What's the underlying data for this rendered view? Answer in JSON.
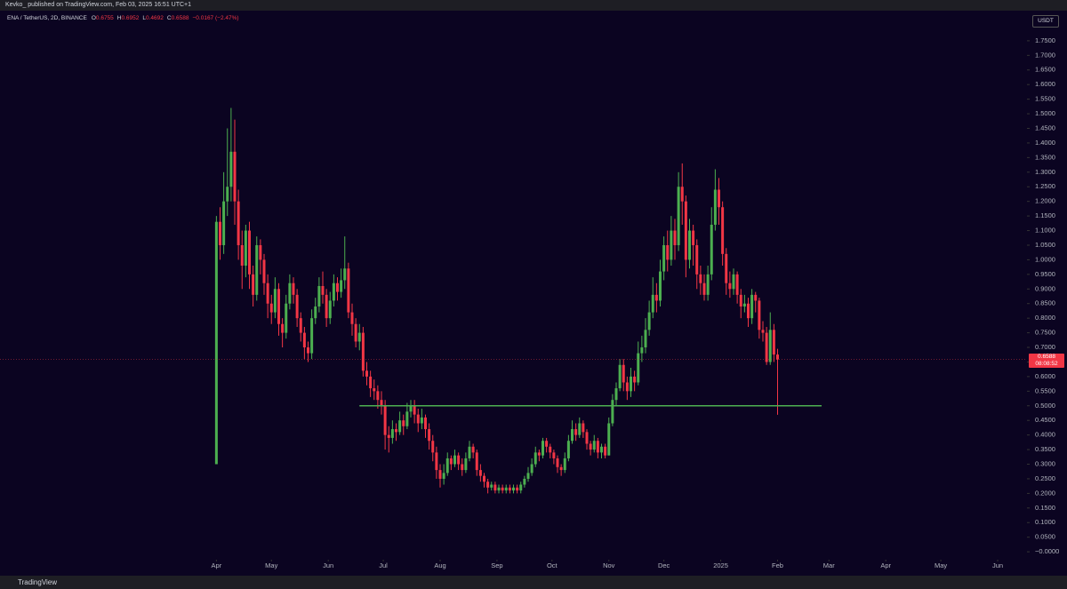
{
  "header": "Kevko_ published on TradingView.com, Feb 03, 2025 16:51 UTC+1",
  "footer": "TradingView",
  "chart_data": {
    "type": "candlestick",
    "symbol": "ENA / TetherUS, 2D, BINANCE",
    "currency": "USDT",
    "legend_labels": [
      "O",
      "H",
      "L",
      "C"
    ],
    "change_label": "−0.0167 (−2.47%)",
    "countdown": "08:08:52",
    "up_color": "#4caf50",
    "down_color": "#f23645",
    "grid": false,
    "open": [
      0.3,
      1.13,
      1.05,
      1.2,
      1.25,
      1.37,
      1.2,
      1.05,
      0.98,
      1.1,
      0.95,
      0.88,
      1.05,
      1.0,
      0.92,
      0.85,
      0.82,
      0.9,
      0.78,
      0.75,
      0.85,
      0.92,
      0.88,
      0.8,
      0.75,
      0.7,
      0.68,
      0.8,
      0.84,
      0.91,
      0.88,
      0.8,
      0.86,
      0.92,
      0.89,
      0.93,
      0.97,
      0.82,
      0.78,
      0.72,
      0.75,
      0.62,
      0.6,
      0.56,
      0.55,
      0.52,
      0.5,
      0.4,
      0.39,
      0.42,
      0.41,
      0.45,
      0.43,
      0.48,
      0.5,
      0.47,
      0.44,
      0.46,
      0.42,
      0.38,
      0.34,
      0.28,
      0.25,
      0.27,
      0.32,
      0.3,
      0.33,
      0.3,
      0.28,
      0.32,
      0.36,
      0.34,
      0.28,
      0.26,
      0.24,
      0.22,
      0.23,
      0.21,
      0.22,
      0.21,
      0.22,
      0.21,
      0.22,
      0.21,
      0.23,
      0.25,
      0.27,
      0.3,
      0.34,
      0.33,
      0.38,
      0.36,
      0.34,
      0.32,
      0.29,
      0.28,
      0.32,
      0.38,
      0.42,
      0.4,
      0.44,
      0.41,
      0.37,
      0.35,
      0.38,
      0.34,
      0.36,
      0.33,
      0.44,
      0.52,
      0.56,
      0.64,
      0.58,
      0.55,
      0.6,
      0.58,
      0.68,
      0.7,
      0.76,
      0.82,
      0.88,
      0.86,
      0.96,
      1.05,
      1.0,
      1.1,
      1.05,
      1.25,
      1.2,
      1.0,
      1.1,
      1.05,
      0.95,
      0.92,
      0.88,
      0.95,
      1.12,
      1.24,
      1.18,
      1.02,
      0.92,
      0.9,
      0.95,
      0.88,
      0.84,
      0.85,
      0.8,
      0.88,
      0.86,
      0.76,
      0.75,
      0.65,
      0.76,
      0.6755
    ],
    "high": [
      1.15,
      1.18,
      1.3,
      1.45,
      1.52,
      1.48,
      1.24,
      1.1,
      1.12,
      1.13,
      0.98,
      1.08,
      1.07,
      1.02,
      0.95,
      0.88,
      0.94,
      0.92,
      0.8,
      0.88,
      0.95,
      0.94,
      0.9,
      0.82,
      0.77,
      0.72,
      0.83,
      0.87,
      0.94,
      0.96,
      0.9,
      0.89,
      0.95,
      0.94,
      0.97,
      1.08,
      0.99,
      0.85,
      0.8,
      0.78,
      0.77,
      0.65,
      0.62,
      0.59,
      0.57,
      0.55,
      0.52,
      0.43,
      0.45,
      0.44,
      0.48,
      0.47,
      0.51,
      0.52,
      0.52,
      0.49,
      0.49,
      0.47,
      0.44,
      0.4,
      0.36,
      0.3,
      0.3,
      0.34,
      0.33,
      0.35,
      0.34,
      0.32,
      0.34,
      0.38,
      0.37,
      0.35,
      0.3,
      0.27,
      0.25,
      0.24,
      0.24,
      0.23,
      0.23,
      0.23,
      0.23,
      0.23,
      0.23,
      0.24,
      0.26,
      0.29,
      0.32,
      0.36,
      0.35,
      0.39,
      0.39,
      0.37,
      0.35,
      0.33,
      0.3,
      0.34,
      0.4,
      0.45,
      0.44,
      0.46,
      0.45,
      0.42,
      0.38,
      0.4,
      0.39,
      0.37,
      0.37,
      0.46,
      0.54,
      0.58,
      0.66,
      0.66,
      0.6,
      0.63,
      0.62,
      0.72,
      0.74,
      0.8,
      0.86,
      0.94,
      0.92,
      1.0,
      1.08,
      1.1,
      1.15,
      1.14,
      1.3,
      1.33,
      1.22,
      1.14,
      1.12,
      1.07,
      0.98,
      0.95,
      0.98,
      1.18,
      1.31,
      1.28,
      1.2,
      1.04,
      0.96,
      0.97,
      0.96,
      0.9,
      0.88,
      0.87,
      0.9,
      0.89,
      0.87,
      0.79,
      0.77,
      0.82,
      0.78,
      0.6952
    ],
    "low": [
      0.3,
      1.0,
      1.02,
      1.15,
      1.2,
      1.12,
      1.0,
      0.9,
      0.94,
      0.9,
      0.84,
      0.86,
      0.95,
      0.88,
      0.8,
      0.78,
      0.8,
      0.74,
      0.7,
      0.73,
      0.83,
      0.85,
      0.77,
      0.72,
      0.66,
      0.65,
      0.66,
      0.78,
      0.82,
      0.85,
      0.77,
      0.78,
      0.84,
      0.86,
      0.87,
      0.9,
      0.8,
      0.74,
      0.7,
      0.69,
      0.6,
      0.57,
      0.53,
      0.52,
      0.49,
      0.47,
      0.35,
      0.34,
      0.37,
      0.38,
      0.4,
      0.4,
      0.42,
      0.46,
      0.44,
      0.41,
      0.42,
      0.39,
      0.35,
      0.31,
      0.25,
      0.22,
      0.23,
      0.26,
      0.28,
      0.29,
      0.28,
      0.26,
      0.27,
      0.31,
      0.32,
      0.26,
      0.24,
      0.22,
      0.2,
      0.21,
      0.2,
      0.2,
      0.2,
      0.2,
      0.2,
      0.2,
      0.2,
      0.2,
      0.22,
      0.24,
      0.26,
      0.29,
      0.31,
      0.32,
      0.34,
      0.32,
      0.3,
      0.27,
      0.26,
      0.27,
      0.31,
      0.37,
      0.38,
      0.39,
      0.39,
      0.35,
      0.33,
      0.34,
      0.32,
      0.32,
      0.32,
      0.33,
      0.43,
      0.5,
      0.55,
      0.55,
      0.52,
      0.53,
      0.55,
      0.57,
      0.65,
      0.68,
      0.74,
      0.8,
      0.82,
      0.84,
      0.93,
      0.96,
      0.98,
      1.0,
      1.03,
      1.12,
      0.94,
      0.97,
      0.98,
      0.9,
      0.88,
      0.86,
      0.86,
      0.93,
      1.1,
      1.12,
      0.98,
      0.88,
      0.87,
      0.88,
      0.85,
      0.8,
      0.82,
      0.77,
      0.78,
      0.82,
      0.73,
      0.72,
      0.64,
      0.64,
      0.65,
      0.4692
    ],
    "close": [
      1.13,
      1.05,
      1.2,
      1.25,
      1.37,
      1.2,
      1.05,
      0.98,
      1.1,
      0.95,
      0.88,
      1.05,
      1.0,
      0.92,
      0.85,
      0.82,
      0.9,
      0.78,
      0.75,
      0.85,
      0.92,
      0.88,
      0.8,
      0.75,
      0.7,
      0.68,
      0.8,
      0.84,
      0.91,
      0.88,
      0.8,
      0.86,
      0.92,
      0.89,
      0.93,
      0.97,
      0.82,
      0.78,
      0.72,
      0.75,
      0.62,
      0.6,
      0.56,
      0.55,
      0.52,
      0.5,
      0.4,
      0.39,
      0.42,
      0.41,
      0.45,
      0.43,
      0.48,
      0.5,
      0.47,
      0.44,
      0.46,
      0.42,
      0.38,
      0.34,
      0.28,
      0.25,
      0.27,
      0.32,
      0.3,
      0.33,
      0.3,
      0.28,
      0.32,
      0.36,
      0.34,
      0.28,
      0.26,
      0.24,
      0.22,
      0.23,
      0.21,
      0.22,
      0.21,
      0.22,
      0.21,
      0.22,
      0.21,
      0.23,
      0.25,
      0.27,
      0.3,
      0.34,
      0.33,
      0.38,
      0.36,
      0.34,
      0.32,
      0.29,
      0.28,
      0.32,
      0.38,
      0.42,
      0.4,
      0.44,
      0.41,
      0.37,
      0.35,
      0.38,
      0.34,
      0.36,
      0.33,
      0.44,
      0.52,
      0.56,
      0.64,
      0.58,
      0.55,
      0.6,
      0.58,
      0.68,
      0.7,
      0.76,
      0.82,
      0.88,
      0.86,
      0.96,
      1.05,
      1.0,
      1.1,
      1.05,
      1.25,
      1.2,
      1.0,
      1.1,
      1.05,
      0.95,
      0.92,
      0.88,
      0.95,
      1.12,
      1.24,
      1.18,
      1.02,
      0.92,
      0.9,
      0.95,
      0.88,
      0.84,
      0.85,
      0.8,
      0.88,
      0.86,
      0.76,
      0.75,
      0.65,
      0.76,
      0.6755,
      0.6588
    ],
    "hline": {
      "value": 0.5,
      "from": 39,
      "to": 165,
      "color": "#4caf50"
    },
    "xlim": [
      -59,
      221
    ],
    "xticks": [
      {
        "value": 0,
        "label": "Apr"
      },
      {
        "value": 15,
        "label": "May"
      },
      {
        "value": 30.5,
        "label": "Jun"
      },
      {
        "value": 45.5,
        "label": "Jul"
      },
      {
        "value": 61,
        "label": "Aug"
      },
      {
        "value": 76.5,
        "label": "Sep"
      },
      {
        "value": 91.5,
        "label": "Oct"
      },
      {
        "value": 107,
        "label": "Nov"
      },
      {
        "value": 122,
        "label": "Dec"
      },
      {
        "value": 137.5,
        "label": "2025"
      },
      {
        "value": 153,
        "label": "Feb"
      },
      {
        "value": 167,
        "label": "Mar"
      },
      {
        "value": 182.5,
        "label": "Apr"
      },
      {
        "value": 197.5,
        "label": "May"
      },
      {
        "value": 213,
        "label": "Jun"
      }
    ],
    "ylim": [
      -0.027,
      1.847
    ],
    "yticks": [
      {
        "value": 0,
        "label": "−0.0000"
      },
      {
        "value": 0.05,
        "label": "0.0500"
      },
      {
        "value": 0.1,
        "label": "0.1000"
      },
      {
        "value": 0.15,
        "label": "0.1500"
      },
      {
        "value": 0.2,
        "label": "0.2000"
      },
      {
        "value": 0.25,
        "label": "0.2500"
      },
      {
        "value": 0.3,
        "label": "0.3000"
      },
      {
        "value": 0.35,
        "label": "0.3500"
      },
      {
        "value": 0.4,
        "label": "0.4000"
      },
      {
        "value": 0.45,
        "label": "0.4500"
      },
      {
        "value": 0.5,
        "label": "0.5000"
      },
      {
        "value": 0.55,
        "label": "0.5500"
      },
      {
        "value": 0.6,
        "label": "0.6000"
      },
      {
        "value": 0.65,
        "label": "0.6500"
      },
      {
        "value": 0.7,
        "label": "0.7000"
      },
      {
        "value": 0.75,
        "label": "0.7500"
      },
      {
        "value": 0.8,
        "label": "0.8000"
      },
      {
        "value": 0.85,
        "label": "0.8500"
      },
      {
        "value": 0.9,
        "label": "0.9000"
      },
      {
        "value": 0.95,
        "label": "0.9500"
      },
      {
        "value": 1,
        "label": "1.0000"
      },
      {
        "value": 1.05,
        "label": "1.0500"
      },
      {
        "value": 1.1,
        "label": "1.1000"
      },
      {
        "value": 1.15,
        "label": "1.1500"
      },
      {
        "value": 1.2,
        "label": "1.2000"
      },
      {
        "value": 1.25,
        "label": "1.2500"
      },
      {
        "value": 1.3,
        "label": "1.3000"
      },
      {
        "value": 1.35,
        "label": "1.3500"
      },
      {
        "value": 1.4,
        "label": "1.4000"
      },
      {
        "value": 1.45,
        "label": "1.4500"
      },
      {
        "value": 1.5,
        "label": "1.5000"
      },
      {
        "value": 1.55,
        "label": "1.5500"
      },
      {
        "value": 1.6,
        "label": "1.6000"
      },
      {
        "value": 1.65,
        "label": "1.6500"
      },
      {
        "value": 1.7,
        "label": "1.7000"
      },
      {
        "value": 1.75,
        "label": "1.7500"
      }
    ]
  }
}
